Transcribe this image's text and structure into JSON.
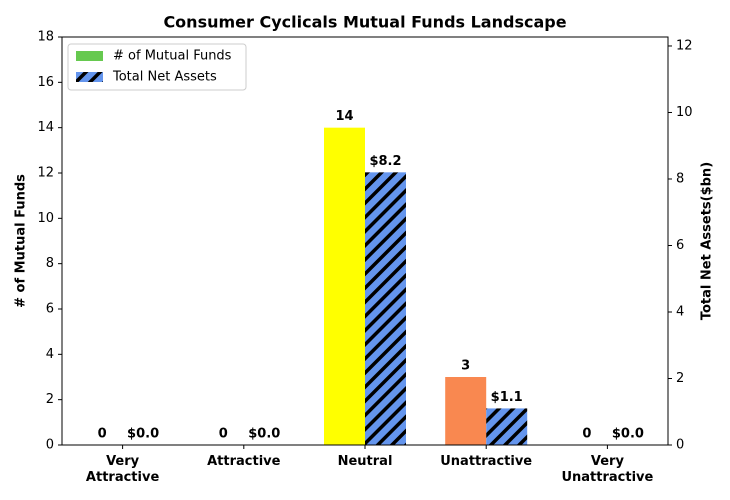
{
  "chart_data": {
    "type": "bar",
    "title": "Consumer Cyclicals Mutual Funds Landscape",
    "categories": [
      "Very Attractive",
      "Attractive",
      "Neutral",
      "Unattractive",
      "Very Unattractive"
    ],
    "ylabel": "# of Mutual Funds",
    "y2label": "Total Net Assets($bn)",
    "ylim": [
      0,
      18
    ],
    "yticks": [
      0,
      2,
      4,
      6,
      8,
      10,
      12,
      14,
      16,
      18
    ],
    "y2lim": [
      0,
      12.27
    ],
    "y2ticks": [
      0,
      2,
      4,
      6,
      8,
      10,
      12
    ],
    "legend": "upper left",
    "series": [
      {
        "name": "# of Mutual Funds",
        "color": "#66c94f",
        "colors": [
          "#66c94f",
          "#66c94f",
          "#ffff00",
          "#f98850",
          "#66c94f"
        ],
        "values": [
          0,
          0,
          14,
          3,
          0
        ]
      },
      {
        "name": "Total Net Assets",
        "color": "#6495ed",
        "hatch": true,
        "axis": "y2",
        "values": [
          0,
          0,
          8.2,
          1.1,
          0
        ],
        "value_labels": [
          "$0.0",
          "$0.0",
          "$8.2",
          "$1.1",
          "$0.0"
        ]
      }
    ]
  }
}
